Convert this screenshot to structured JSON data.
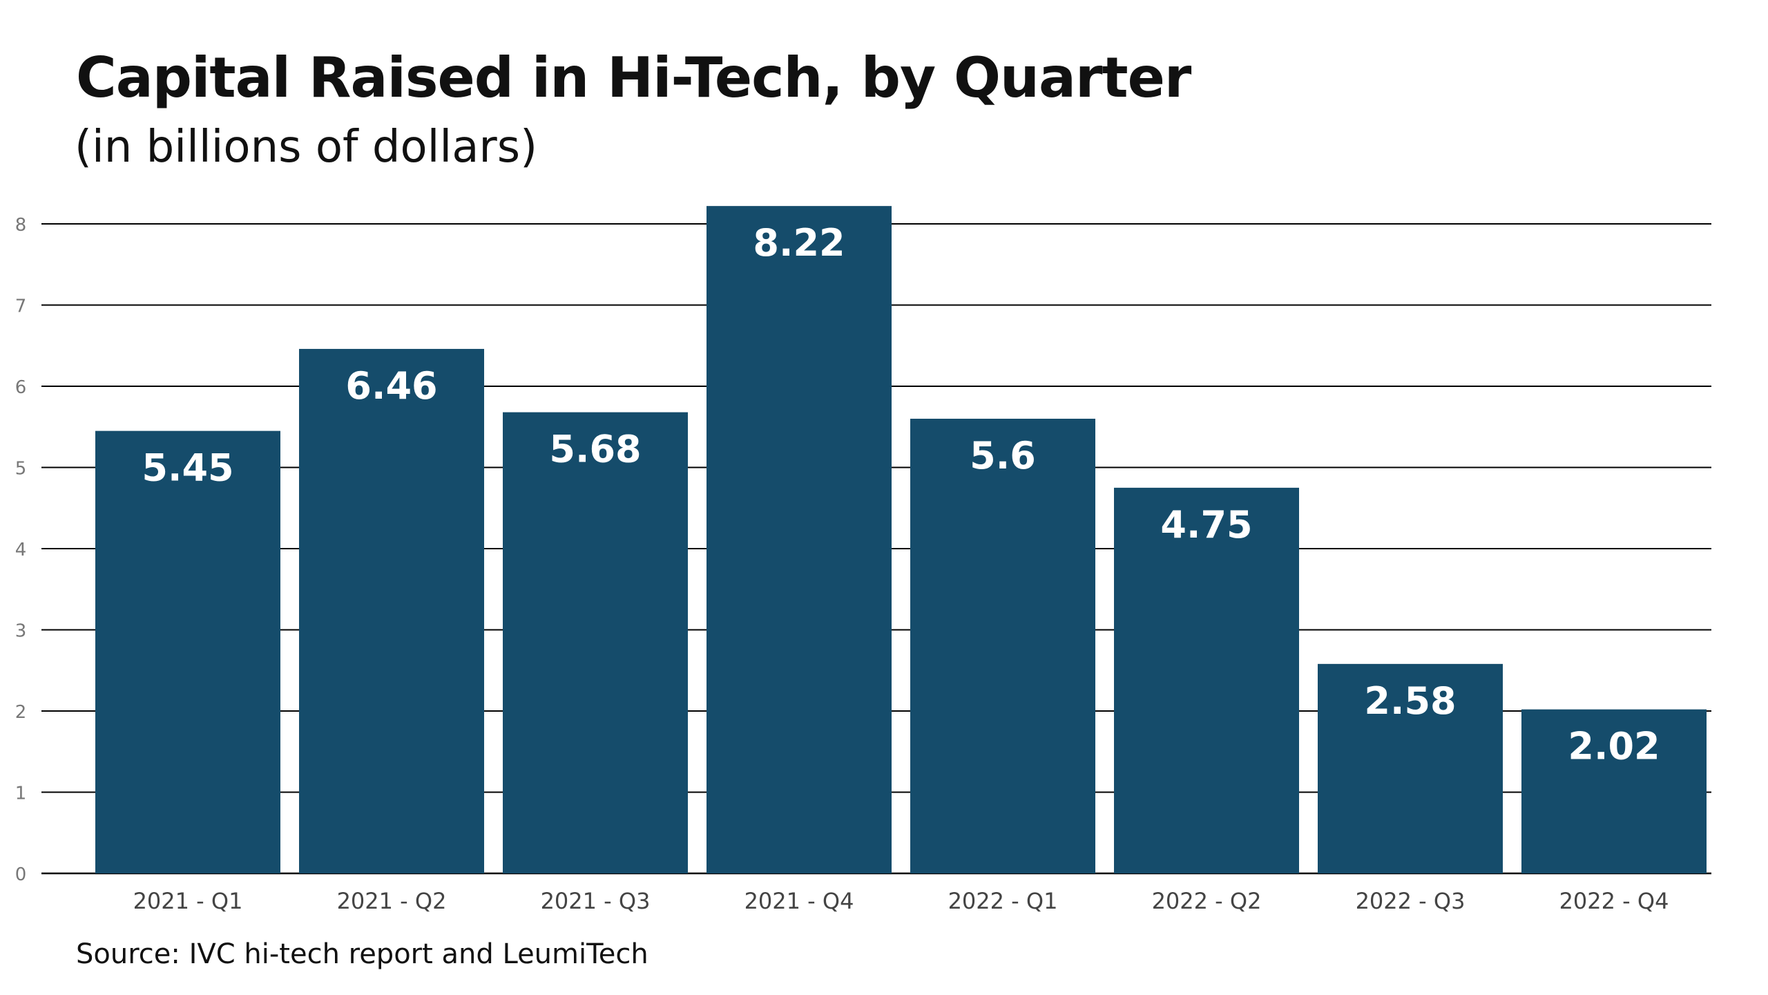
{
  "chart_data": {
    "type": "bar",
    "title": "Capital Raised in Hi-Tech, by Quarter",
    "subtitle": "(in billions of dollars)",
    "categories": [
      "2021 - Q1",
      "2021 - Q2",
      "2021 - Q3",
      "2021 - Q4",
      "2022 - Q1",
      "2022 - Q2",
      "2022 - Q3",
      "2022 - Q4"
    ],
    "values": [
      5.45,
      6.46,
      5.68,
      8.22,
      5.6,
      4.75,
      2.58,
      2.02
    ],
    "value_labels": [
      "5.45",
      "6.46",
      "5.68",
      "8.22",
      "5.6",
      "4.75",
      "2.58",
      "2.02"
    ],
    "y_ticks": [
      "0",
      "1",
      "2",
      "3",
      "4",
      "5",
      "6",
      "7",
      "8"
    ],
    "ylim": [
      0,
      8
    ],
    "xlabel": "",
    "ylabel": "",
    "grid": true,
    "legend": "none",
    "bar_color": "#154c6b",
    "bar_label_color": "#ffffff",
    "grid_color": "#000000",
    "tick_color": "#777777",
    "source": "Source: IVC hi-tech report and LeumiTech"
  }
}
